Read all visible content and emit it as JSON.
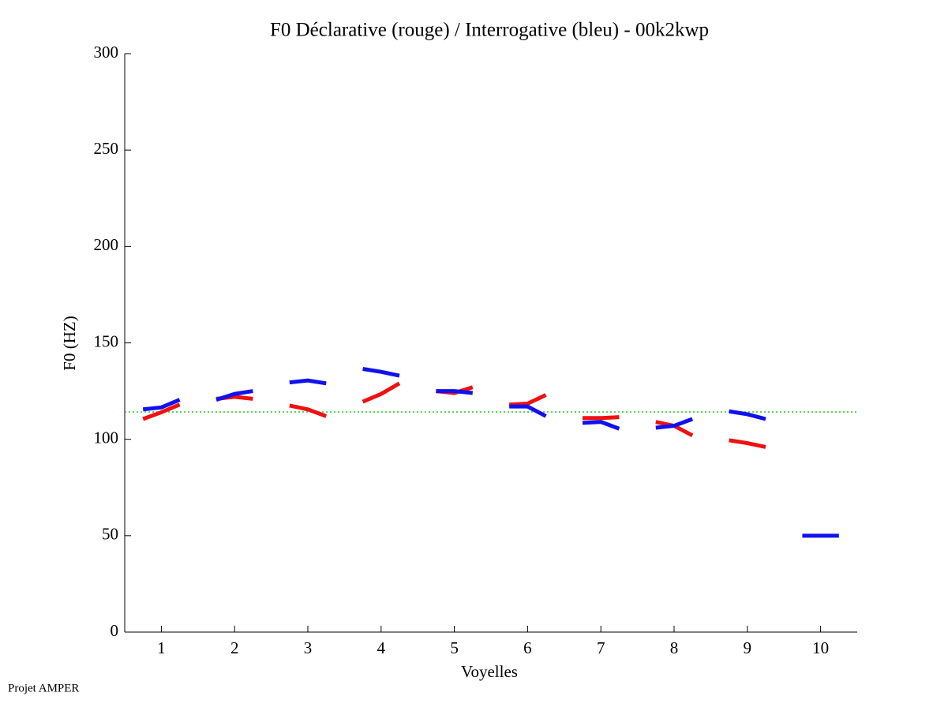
{
  "chart_data": {
    "type": "line",
    "title": "F0 Déclarative (rouge) / Interrogative (bleu) - 00k2kwp",
    "x_label": "Voyelles",
    "y_label": "F0 (HZ)",
    "footer": "Projet AMPER",
    "x": [
      0.75,
      1,
      1.25,
      1.5,
      1.75,
      2,
      2.25,
      2.5,
      2.75,
      3,
      3.25,
      3.5,
      3.75,
      4,
      4.25,
      4.5,
      4.75,
      5,
      5.25,
      5.5,
      5.75,
      6,
      6.25,
      6.5,
      6.75,
      7,
      7.25,
      7.5,
      7.75,
      8,
      8.25,
      8.5,
      8.75,
      9,
      9.25,
      9.5,
      9.75,
      10,
      10.25
    ],
    "series": [
      {
        "name": "Déclarative",
        "color": "#ee1111",
        "values": [
          110.5,
          114,
          118,
          null,
          121,
          122,
          121,
          null,
          117.5,
          115.5,
          112,
          null,
          119.5,
          123.5,
          129,
          null,
          125,
          124,
          127,
          null,
          118,
          118.5,
          123,
          null,
          111,
          111,
          111.5,
          null,
          109,
          107,
          102,
          null,
          99.5,
          98,
          96,
          null,
          null,
          null,
          null
        ]
      },
      {
        "name": "Interrogative",
        "color": "#1111ee",
        "values": [
          115.5,
          116.5,
          120.5,
          null,
          120.5,
          123.5,
          125,
          null,
          129.5,
          130.5,
          129,
          null,
          136.5,
          135,
          133,
          null,
          125,
          125,
          124,
          null,
          117,
          117,
          112,
          null,
          108.5,
          109,
          105.5,
          null,
          106,
          107,
          110.5,
          null,
          114.5,
          113,
          110.5,
          null,
          50,
          50,
          50
        ]
      }
    ],
    "reference_line": 114.2,
    "reference_color": "#22cc22",
    "xlim": [
      0.5,
      10.5
    ],
    "xticks": [
      1,
      2,
      3,
      4,
      5,
      6,
      7,
      8,
      9,
      10
    ],
    "ylim": [
      0,
      300
    ],
    "yticks": [
      0,
      50,
      100,
      150,
      200,
      250,
      300
    ]
  }
}
